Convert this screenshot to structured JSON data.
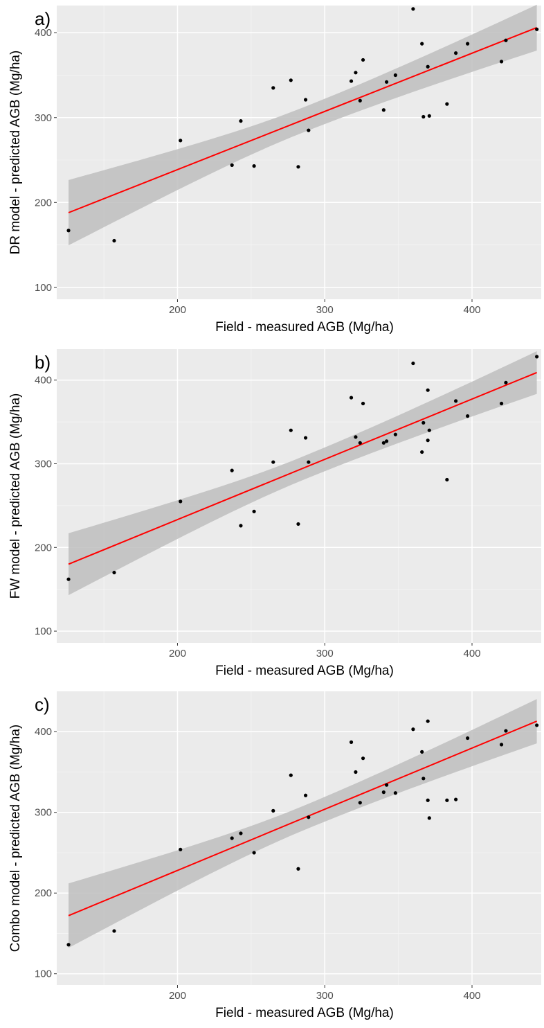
{
  "chart_data": [
    {
      "type": "scatter",
      "panel_label": "a)",
      "xlabel": "Field - measured AGB (Mg/ha)",
      "ylabel": "DR model - predicted AGB (Mg/ha)",
      "xlim": [
        118,
        447
      ],
      "ylim": [
        86,
        432
      ],
      "x_ticks": [
        200,
        300,
        400
      ],
      "y_ticks": [
        100,
        200,
        300,
        400
      ],
      "grid": true,
      "fit": {
        "x": [
          126,
          444
        ],
        "y": [
          188,
          406
        ],
        "ci_lower": [
          150,
          379
        ],
        "ci_upper": [
          227,
          433
        ],
        "color": "#ff0000"
      },
      "ci_color": "#bebebe",
      "points": [
        {
          "x": 126,
          "y": 167
        },
        {
          "x": 157,
          "y": 155
        },
        {
          "x": 202,
          "y": 273
        },
        {
          "x": 237,
          "y": 244
        },
        {
          "x": 243,
          "y": 296
        },
        {
          "x": 252,
          "y": 243
        },
        {
          "x": 265,
          "y": 335
        },
        {
          "x": 277,
          "y": 344
        },
        {
          "x": 282,
          "y": 242
        },
        {
          "x": 287,
          "y": 321
        },
        {
          "x": 289,
          "y": 285
        },
        {
          "x": 318,
          "y": 343
        },
        {
          "x": 321,
          "y": 353
        },
        {
          "x": 324,
          "y": 320
        },
        {
          "x": 326,
          "y": 368
        },
        {
          "x": 340,
          "y": 309
        },
        {
          "x": 342,
          "y": 342
        },
        {
          "x": 348,
          "y": 350
        },
        {
          "x": 360,
          "y": 428
        },
        {
          "x": 366,
          "y": 387
        },
        {
          "x": 367,
          "y": 301
        },
        {
          "x": 370,
          "y": 360
        },
        {
          "x": 371,
          "y": 302
        },
        {
          "x": 383,
          "y": 316
        },
        {
          "x": 389,
          "y": 376
        },
        {
          "x": 397,
          "y": 387
        },
        {
          "x": 420,
          "y": 366
        },
        {
          "x": 423,
          "y": 391
        },
        {
          "x": 444,
          "y": 404
        }
      ]
    },
    {
      "type": "scatter",
      "panel_label": "b)",
      "xlabel": "Field - measured AGB (Mg/ha)",
      "ylabel": "FW model - predicted AGB (Mg/ha)",
      "xlim": [
        118,
        447
      ],
      "ylim": [
        86,
        437
      ],
      "x_ticks": [
        200,
        300,
        400
      ],
      "y_ticks": [
        100,
        200,
        300,
        400
      ],
      "grid": true,
      "fit": {
        "x": [
          126,
          444
        ],
        "y": [
          180,
          409
        ],
        "ci_lower": [
          144,
          384
        ],
        "ci_upper": [
          218,
          435
        ],
        "color": "#ff0000"
      },
      "ci_color": "#bebebe",
      "points": [
        {
          "x": 126,
          "y": 162
        },
        {
          "x": 157,
          "y": 170
        },
        {
          "x": 202,
          "y": 255
        },
        {
          "x": 237,
          "y": 292
        },
        {
          "x": 243,
          "y": 226
        },
        {
          "x": 252,
          "y": 243
        },
        {
          "x": 265,
          "y": 302
        },
        {
          "x": 277,
          "y": 340
        },
        {
          "x": 282,
          "y": 228
        },
        {
          "x": 287,
          "y": 331
        },
        {
          "x": 289,
          "y": 302
        },
        {
          "x": 318,
          "y": 379
        },
        {
          "x": 321,
          "y": 332
        },
        {
          "x": 324,
          "y": 325
        },
        {
          "x": 326,
          "y": 372
        },
        {
          "x": 340,
          "y": 325
        },
        {
          "x": 342,
          "y": 327
        },
        {
          "x": 348,
          "y": 335
        },
        {
          "x": 360,
          "y": 420
        },
        {
          "x": 366,
          "y": 314
        },
        {
          "x": 367,
          "y": 349
        },
        {
          "x": 370,
          "y": 328
        },
        {
          "x": 371,
          "y": 340
        },
        {
          "x": 370,
          "y": 388
        },
        {
          "x": 383,
          "y": 281
        },
        {
          "x": 389,
          "y": 375
        },
        {
          "x": 397,
          "y": 357
        },
        {
          "x": 420,
          "y": 372
        },
        {
          "x": 423,
          "y": 397
        },
        {
          "x": 444,
          "y": 428
        }
      ]
    },
    {
      "type": "scatter",
      "panel_label": "c)",
      "xlabel": "Field - measured AGB (Mg/ha)",
      "ylabel": "Combo model - predicted AGB (Mg/ha)",
      "xlim": [
        118,
        447
      ],
      "ylim": [
        86,
        450
      ],
      "x_ticks": [
        200,
        300,
        400
      ],
      "y_ticks": [
        100,
        200,
        300,
        400
      ],
      "grid": true,
      "fit": {
        "x": [
          126,
          444
        ],
        "y": [
          172,
          413
        ],
        "ci_lower": [
          132,
          386
        ],
        "ci_upper": [
          212,
          441
        ],
        "color": "#ff0000"
      },
      "ci_color": "#bebebe",
      "points": [
        {
          "x": 126,
          "y": 136
        },
        {
          "x": 157,
          "y": 153
        },
        {
          "x": 202,
          "y": 254
        },
        {
          "x": 237,
          "y": 268
        },
        {
          "x": 243,
          "y": 274
        },
        {
          "x": 252,
          "y": 250
        },
        {
          "x": 265,
          "y": 302
        },
        {
          "x": 277,
          "y": 346
        },
        {
          "x": 282,
          "y": 230
        },
        {
          "x": 287,
          "y": 321
        },
        {
          "x": 289,
          "y": 294
        },
        {
          "x": 318,
          "y": 387
        },
        {
          "x": 321,
          "y": 350
        },
        {
          "x": 324,
          "y": 312
        },
        {
          "x": 326,
          "y": 367
        },
        {
          "x": 340,
          "y": 325
        },
        {
          "x": 342,
          "y": 334
        },
        {
          "x": 348,
          "y": 324
        },
        {
          "x": 360,
          "y": 403
        },
        {
          "x": 366,
          "y": 375
        },
        {
          "x": 367,
          "y": 342
        },
        {
          "x": 370,
          "y": 413
        },
        {
          "x": 370,
          "y": 315
        },
        {
          "x": 371,
          "y": 293
        },
        {
          "x": 383,
          "y": 315
        },
        {
          "x": 389,
          "y": 316
        },
        {
          "x": 397,
          "y": 392
        },
        {
          "x": 420,
          "y": 384
        },
        {
          "x": 423,
          "y": 401
        },
        {
          "x": 444,
          "y": 408
        }
      ]
    }
  ]
}
